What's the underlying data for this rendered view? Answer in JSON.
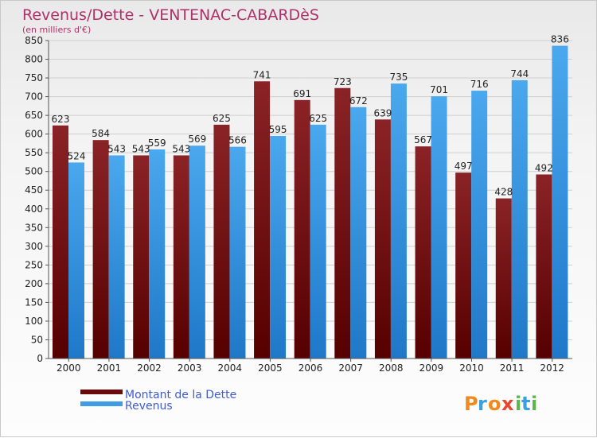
{
  "chart_data": {
    "type": "bar",
    "title": "Revenus/Dette - VENTENAC-CABARDèS",
    "subtitle": "(en milliers d'€)",
    "categories": [
      "2000",
      "2001",
      "2002",
      "2003",
      "2004",
      "2005",
      "2006",
      "2007",
      "2008",
      "2009",
      "2010",
      "2011",
      "2012"
    ],
    "series": [
      {
        "name": "Montant de la Dette",
        "color": "#7a0f12",
        "values": [
          623,
          584,
          543,
          543,
          625,
          741,
          691,
          723,
          639,
          567,
          497,
          428,
          492
        ]
      },
      {
        "name": "Revenus",
        "color": "#3f9de8",
        "values": [
          524,
          543,
          559,
          569,
          566,
          595,
          625,
          672,
          735,
          701,
          716,
          744,
          836
        ]
      }
    ],
    "ylim": [
      0,
      850
    ],
    "yticks": [
      0,
      50,
      100,
      150,
      200,
      250,
      300,
      350,
      400,
      450,
      500,
      550,
      600,
      650,
      700,
      750,
      800,
      850
    ],
    "grid": true,
    "legend_position": "bottom-left"
  },
  "brand": {
    "letters": [
      "P",
      "r",
      "o",
      "x",
      "i",
      "t",
      "i"
    ],
    "colors": [
      "#f08a1c",
      "#3aa0e0",
      "#f08a1c",
      "#e8452c",
      "#5ab848",
      "#3aa0e0",
      "#5ab848"
    ]
  }
}
